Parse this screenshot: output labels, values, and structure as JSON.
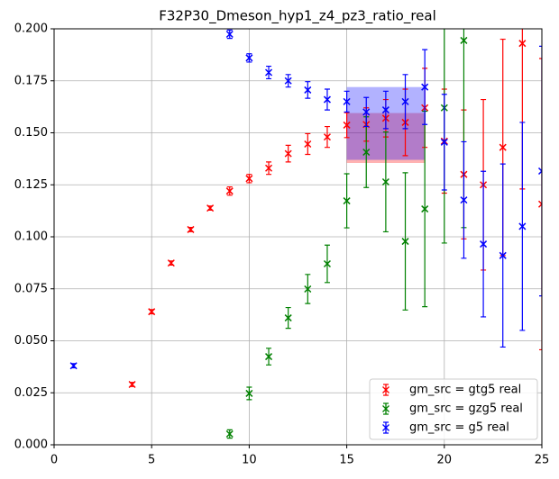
{
  "chart_data": {
    "type": "errorbar",
    "title": "F32P30_Dmeson_hyp1_z4_pz3_ratio_real",
    "xlim": [
      0,
      25
    ],
    "xticks": [
      0,
      5,
      10,
      15,
      20,
      25
    ],
    "ylim": [
      0,
      0.2
    ],
    "yticks": [
      {
        "value": 0,
        "label": "0.000"
      },
      {
        "value": 0.025,
        "label": "0.025"
      },
      {
        "value": 0.05,
        "label": "0.050"
      },
      {
        "value": 0.075,
        "label": "0.075"
      },
      {
        "value": 0.1,
        "label": "0.100"
      },
      {
        "value": 0.125,
        "label": "0.125"
      },
      {
        "value": 0.15,
        "label": "0.150"
      },
      {
        "value": 0.175,
        "label": "0.175"
      },
      {
        "value": 0.2,
        "label": "0.200"
      }
    ],
    "grid": true,
    "legend": "lower right",
    "series": [
      {
        "name": "gm_src = gtg5 real",
        "color": "#ff0000",
        "x": [
          4,
          5,
          6,
          7,
          8,
          9,
          10,
          11,
          12,
          13,
          14,
          15,
          16,
          17,
          18,
          19,
          20,
          21,
          22,
          23,
          24,
          25
        ],
        "values": [
          0.029,
          0.064,
          0.0874,
          0.1035,
          0.1138,
          0.122,
          0.128,
          0.133,
          0.14,
          0.1446,
          0.148,
          0.1537,
          0.154,
          0.157,
          0.155,
          0.162,
          0.146,
          0.13,
          0.125,
          0.143,
          0.193,
          0.1157
        ],
        "errors": [
          0.001,
          0.001,
          0.001,
          0.001,
          0.001,
          0.002,
          0.002,
          0.003,
          0.004,
          0.005,
          0.005,
          0.006,
          0.008,
          0.009,
          0.016,
          0.019,
          0.025,
          0.031,
          0.041,
          0.052,
          0.07,
          0.07
        ]
      },
      {
        "name": "gm_src = gzg5 real",
        "color": "#008000",
        "x": [
          9,
          10,
          11,
          12,
          13,
          14,
          15,
          16,
          17,
          18,
          19,
          20,
          21
        ],
        "values": [
          0.0052,
          0.0247,
          0.0424,
          0.061,
          0.0749,
          0.087,
          0.1173,
          0.1407,
          0.1264,
          0.0978,
          0.1134,
          0.162,
          0.1944
        ],
        "errors": [
          0.002,
          0.003,
          0.004,
          0.005,
          0.007,
          0.009,
          0.013,
          0.017,
          0.024,
          0.033,
          0.047,
          0.065,
          0.09
        ]
      },
      {
        "name": "gm_src = g5 real",
        "color": "#0000ff",
        "x": [
          1,
          9,
          10,
          11,
          12,
          13,
          14,
          15,
          16,
          17,
          18,
          19,
          20,
          21,
          22,
          23,
          24,
          25
        ],
        "values": [
          0.038,
          0.1974,
          0.186,
          0.179,
          0.175,
          0.1706,
          0.166,
          0.165,
          0.16,
          0.161,
          0.165,
          0.172,
          0.1455,
          0.1177,
          0.0965,
          0.091,
          0.105,
          0.1316
        ],
        "errors": [
          0.001,
          0.002,
          0.002,
          0.003,
          0.003,
          0.004,
          0.005,
          0.005,
          0.007,
          0.009,
          0.013,
          0.018,
          0.023,
          0.028,
          0.035,
          0.044,
          0.05,
          0.06
        ]
      }
    ],
    "bands": [
      {
        "color": "#ff0000",
        "x": [
          15,
          19
        ],
        "lower": 0.1355,
        "upper": 0.1595
      },
      {
        "color": "#0000ff",
        "x": [
          15,
          19
        ],
        "lower": 0.137,
        "upper": 0.172
      }
    ]
  }
}
